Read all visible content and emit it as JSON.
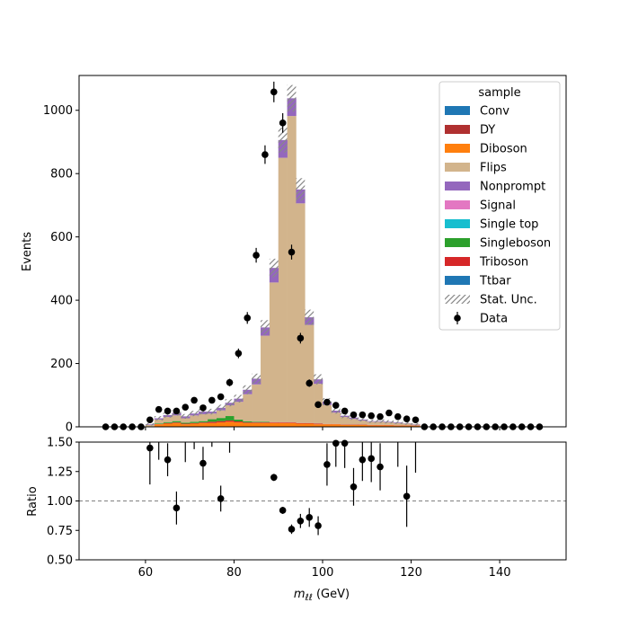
{
  "chart_data": [
    {
      "type": "bar",
      "panel": "main",
      "ylabel": "Events",
      "xlim": [
        45,
        155
      ],
      "ylim": [
        0,
        1110
      ],
      "yticks": [
        0,
        200,
        400,
        600,
        800,
        1000
      ],
      "grid": false,
      "legend_placement": "top-right",
      "legend_title": "sample",
      "legend": [
        {
          "label": "Conv",
          "color": "#1f77b4",
          "kind": "patch"
        },
        {
          "label": "DY",
          "color": "#b03030",
          "kind": "patch"
        },
        {
          "label": "Diboson",
          "color": "#ff7f0e",
          "kind": "patch"
        },
        {
          "label": "Flips",
          "color": "#d2b48c",
          "kind": "patch"
        },
        {
          "label": "Nonprompt",
          "color": "#9467bd",
          "kind": "patch"
        },
        {
          "label": "Signal",
          "color": "#e377c2",
          "kind": "patch"
        },
        {
          "label": "Single top",
          "color": "#17becf",
          "kind": "patch"
        },
        {
          "label": "Singleboson",
          "color": "#2ca02c",
          "kind": "patch"
        },
        {
          "label": "Triboson",
          "color": "#d62728",
          "kind": "patch"
        },
        {
          "label": "Ttbar",
          "color": "#1f77b4",
          "kind": "patch"
        },
        {
          "label": "Stat. Unc.",
          "color": "#888888",
          "kind": "hatch"
        },
        {
          "label": "Data",
          "color": "#000000",
          "kind": "errorbar"
        }
      ],
      "bin_edges": [
        50,
        52,
        54,
        56,
        58,
        60,
        62,
        64,
        66,
        68,
        70,
        72,
        74,
        76,
        78,
        80,
        82,
        84,
        86,
        88,
        90,
        92,
        94,
        96,
        98,
        100,
        102,
        104,
        106,
        108,
        110,
        112,
        114,
        116,
        118,
        120,
        122,
        124,
        126,
        128,
        130,
        132,
        134,
        136,
        138,
        140,
        142,
        144,
        146,
        148,
        150
      ],
      "series": [
        {
          "name": "Diboson",
          "color": "#ff7f0e",
          "values": [
            0,
            0,
            0,
            0,
            0,
            2,
            8,
            10,
            12,
            8,
            10,
            12,
            12,
            14,
            16,
            14,
            12,
            12,
            12,
            12,
            12,
            12,
            10,
            10,
            8,
            8,
            8,
            6,
            6,
            6,
            5,
            5,
            5,
            4,
            4,
            3,
            0,
            0,
            0,
            0,
            0,
            0,
            0,
            0,
            0,
            0,
            0,
            0,
            0,
            0
          ]
        },
        {
          "name": "Triboson",
          "color": "#d62728",
          "values": [
            0,
            0,
            0,
            0,
            0,
            0,
            1,
            2,
            2,
            2,
            2,
            2,
            4,
            4,
            4,
            3,
            2,
            2,
            2,
            2,
            2,
            2,
            2,
            2,
            2,
            1,
            1,
            1,
            1,
            1,
            1,
            1,
            1,
            1,
            1,
            1,
            0,
            0,
            0,
            0,
            0,
            0,
            0,
            0,
            0,
            0,
            0,
            0,
            0,
            0
          ]
        },
        {
          "name": "Singleboson",
          "color": "#2ca02c",
          "values": [
            0,
            0,
            0,
            0,
            0,
            0,
            2,
            3,
            4,
            3,
            4,
            4,
            8,
            10,
            14,
            6,
            3,
            2,
            2,
            0,
            0,
            0,
            0,
            0,
            0,
            0,
            0,
            0,
            0,
            0,
            0,
            0,
            0,
            0,
            0,
            0,
            0,
            0,
            0,
            0,
            0,
            0,
            0,
            0,
            0,
            0,
            0,
            0,
            0,
            0
          ]
        },
        {
          "name": "Flips",
          "color": "#d2b48c",
          "values": [
            0,
            0,
            0,
            0,
            0,
            4,
            12,
            16,
            18,
            14,
            20,
            22,
            18,
            24,
            34,
            56,
            86,
            118,
            272,
            442,
            836,
            968,
            694,
            310,
            126,
            60,
            36,
            24,
            18,
            13,
            10,
            10,
            8,
            7,
            5,
            3,
            0,
            0,
            0,
            0,
            0,
            0,
            0,
            0,
            0,
            0,
            0,
            0,
            0,
            0
          ]
        },
        {
          "name": "Nonprompt",
          "color": "#9467bd",
          "values": [
            0,
            0,
            0,
            0,
            0,
            2,
            4,
            6,
            8,
            6,
            6,
            8,
            6,
            8,
            8,
            10,
            14,
            18,
            26,
            46,
            56,
            56,
            44,
            24,
            14,
            10,
            6,
            4,
            4,
            3,
            2,
            2,
            2,
            2,
            1,
            1,
            0,
            0,
            0,
            0,
            0,
            0,
            0,
            0,
            0,
            0,
            0,
            0,
            0,
            0
          ]
        }
      ],
      "data_points": {
        "name": "Data",
        "x": [
          51,
          53,
          55,
          57,
          59,
          61,
          63,
          65,
          67,
          69,
          71,
          73,
          75,
          77,
          79,
          81,
          83,
          85,
          87,
          89,
          91,
          93,
          95,
          97,
          99,
          101,
          103,
          105,
          107,
          109,
          111,
          113,
          115,
          117,
          119,
          121,
          123,
          125,
          127,
          129,
          131,
          133,
          135,
          137,
          139,
          141,
          143,
          145,
          147,
          149
        ],
        "y": [
          0,
          0,
          0,
          0,
          0,
          22,
          55,
          50,
          50,
          62,
          84,
          60,
          84,
          95,
          140,
          232,
          344,
          542,
          860,
          1058,
          960,
          552,
          280,
          138,
          70,
          78,
          68,
          50,
          38,
          38,
          35,
          32,
          44,
          32,
          25,
          22,
          0,
          0,
          0,
          0,
          0,
          0,
          0,
          0,
          0,
          0,
          0,
          0,
          0,
          0
        ]
      }
    },
    {
      "type": "scatter",
      "panel": "ratio",
      "xlabel_prefix": "m",
      "xlabel_sub": "ℓℓ",
      "xlabel_suffix": " (GeV)",
      "ylabel": "Ratio",
      "xlim": [
        45,
        155
      ],
      "ylim": [
        0.5,
        1.5
      ],
      "yticks": [
        "0.50",
        "0.75",
        "1.00",
        "1.25",
        "1.50"
      ],
      "xticks": [
        60,
        80,
        100,
        120,
        140
      ],
      "reference_line": 1.0,
      "points": {
        "x": [
          61,
          65,
          67,
          73,
          77,
          89,
          91,
          93,
          95,
          97,
          99,
          101,
          103,
          105,
          107,
          109,
          111,
          113,
          119
        ],
        "y": [
          1.45,
          1.35,
          0.94,
          1.32,
          1.02,
          1.2,
          0.92,
          0.76,
          0.83,
          0.86,
          0.79,
          1.31,
          1.49,
          1.49,
          1.12,
          1.35,
          1.36,
          1.29,
          1.04
        ],
        "err": [
          0.31,
          0.14,
          0.14,
          0.14,
          0.11,
          0.03,
          0.03,
          0.04,
          0.06,
          0.08,
          0.08,
          0.18,
          0.2,
          0.21,
          0.16,
          0.18,
          0.2,
          0.2,
          0.26
        ]
      },
      "offscale_lines": {
        "x": [
          63,
          69,
          71,
          75,
          79,
          117,
          121
        ],
        "low": [
          1.35,
          1.33,
          1.44,
          1.46,
          1.41,
          1.29,
          1.24
        ]
      }
    }
  ]
}
